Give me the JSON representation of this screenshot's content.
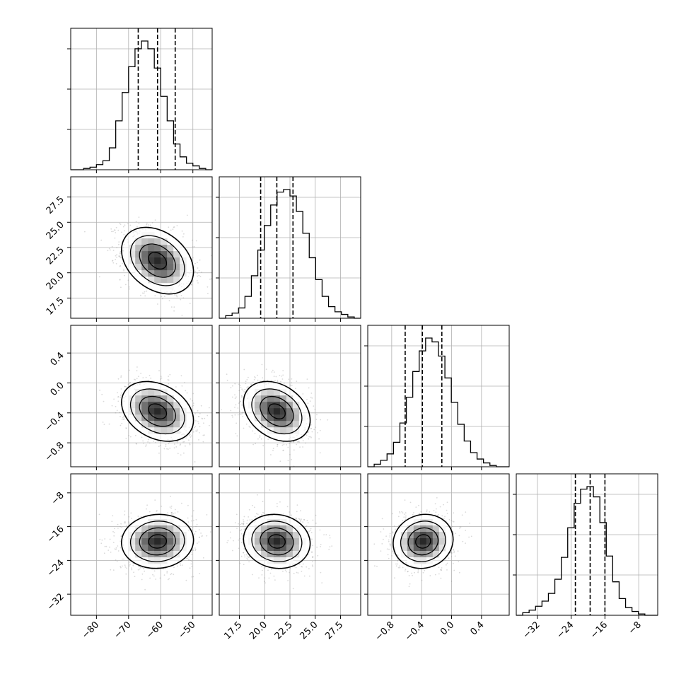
{
  "chart_data": {
    "type": "corner",
    "parameters": [
      {
        "range": [
          -88,
          -44
        ],
        "ticks": [
          -80,
          -70,
          -60,
          -50
        ],
        "tick_labels": [
          "−80",
          "−70",
          "−60",
          "−50"
        ],
        "mean": -61,
        "std": 5.6,
        "quantiles": [
          -67,
          -61,
          -55.5
        ],
        "hist_values": [
          0,
          0,
          0.01,
          0.02,
          0.04,
          0.07,
          0.17,
          0.38,
          0.6,
          0.8,
          0.94,
          1.0,
          0.94,
          0.79,
          0.57,
          0.38,
          0.2,
          0.1,
          0.05,
          0.03,
          0.01,
          0.0
        ]
      },
      {
        "range": [
          15.5,
          29.5
        ],
        "ticks": [
          17.5,
          20.0,
          22.5,
          25.0,
          27.5
        ],
        "tick_labels": [
          "17.5",
          "20.0",
          "22.5",
          "25.0",
          "27.5"
        ],
        "mean": 21.2,
        "std": 1.65,
        "quantiles": [
          19.6,
          21.2,
          22.8
        ],
        "hist_values": [
          0,
          0.02,
          0.04,
          0.08,
          0.17,
          0.33,
          0.53,
          0.72,
          0.88,
          0.98,
          1.0,
          0.95,
          0.83,
          0.66,
          0.47,
          0.3,
          0.17,
          0.09,
          0.05,
          0.03,
          0.01,
          0.0
        ]
      },
      {
        "range": [
          -1.12,
          0.77
        ],
        "ticks": [
          -0.8,
          -0.4,
          0.0,
          0.4
        ],
        "tick_labels": [
          "−0.8",
          "−0.4",
          "0.0",
          "0.4"
        ],
        "mean": -0.38,
        "std": 0.2,
        "quantiles": [
          -0.62,
          -0.39,
          -0.13
        ],
        "hist_values": [
          0,
          0.02,
          0.05,
          0.1,
          0.19,
          0.34,
          0.54,
          0.74,
          0.9,
          1.0,
          0.97,
          0.86,
          0.69,
          0.5,
          0.33,
          0.2,
          0.11,
          0.06,
          0.03,
          0.01,
          0.0,
          0.0
        ]
      },
      {
        "range": [
          -37,
          -3.5
        ],
        "ticks": [
          -32,
          -24,
          -16,
          -8
        ],
        "tick_labels": [
          "−32",
          "−24",
          "−16",
          "−8"
        ],
        "mean": -19.5,
        "std": 3.2,
        "quantiles": [
          -23,
          -19.5,
          -16
        ],
        "hist_values": [
          0,
          0.02,
          0.04,
          0.07,
          0.11,
          0.17,
          0.28,
          0.45,
          0.68,
          0.87,
          0.98,
          1.0,
          0.92,
          0.72,
          0.46,
          0.26,
          0.13,
          0.06,
          0.03,
          0.01,
          0.0,
          0.0
        ]
      }
    ],
    "correlations": [
      [
        1.0,
        -0.32,
        -0.3,
        0.05
      ],
      [
        -0.32,
        1.0,
        -0.3,
        -0.08
      ],
      [
        -0.3,
        -0.3,
        1.0,
        0.08
      ],
      [
        0.05,
        -0.08,
        0.08,
        1.0
      ]
    ],
    "contour_levels_sigma": [
      0.5,
      1.0,
      1.5,
      2.0
    ],
    "grid": true
  }
}
